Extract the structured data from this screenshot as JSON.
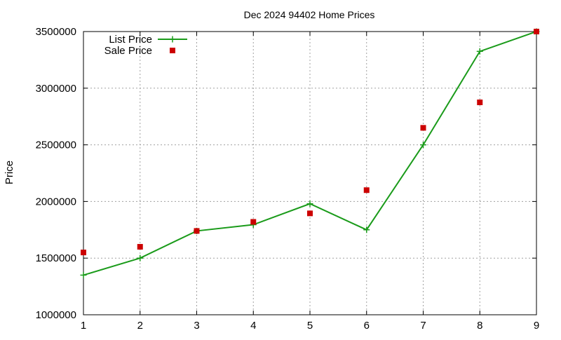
{
  "chart_data": {
    "type": "line",
    "title": "Dec 2024 94402 Home Prices",
    "xlabel": "",
    "ylabel": "Price",
    "x": [
      1,
      2,
      3,
      4,
      5,
      6,
      7,
      8,
      9
    ],
    "xlim": [
      1,
      9
    ],
    "ylim": [
      1000000,
      3500000
    ],
    "xticks": [
      "1",
      "2",
      "3",
      "4",
      "5",
      "6",
      "7",
      "8",
      "9"
    ],
    "yticks": [
      "1000000",
      "1500000",
      "2000000",
      "2500000",
      "3000000",
      "3500000"
    ],
    "grid": true,
    "legend_position": "top-left",
    "series": [
      {
        "name": "List Price",
        "style": "line+cross",
        "color": "#1a9b1a",
        "values": [
          1350000,
          1500000,
          1740000,
          1795000,
          1980000,
          1750000,
          2500000,
          3325000,
          3500000
        ]
      },
      {
        "name": "Sale Price",
        "style": "square",
        "color": "#cc0000",
        "values": [
          1550000,
          1600000,
          1740000,
          1820000,
          1895000,
          2100000,
          2650000,
          2875000,
          3500000
        ]
      }
    ]
  }
}
